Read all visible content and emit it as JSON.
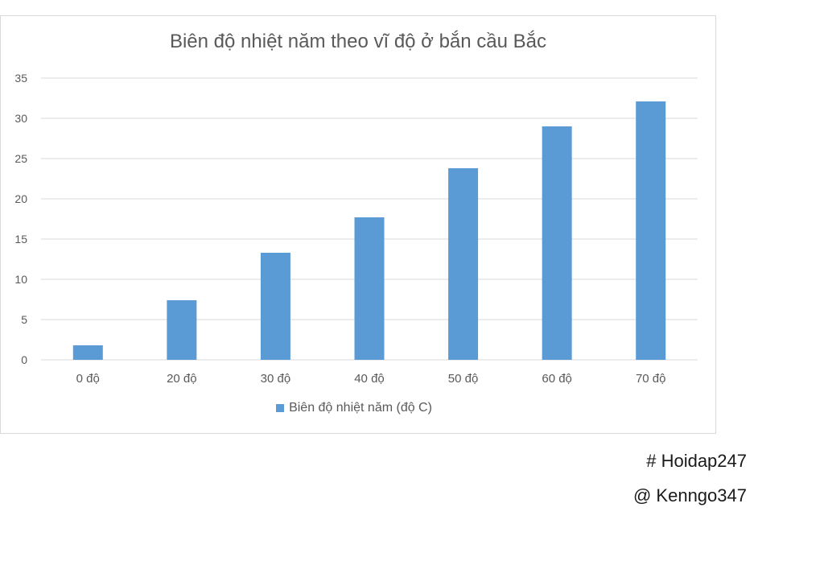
{
  "chart_data": {
    "type": "bar",
    "title": "Biên độ nhiệt năm theo vĩ độ ở bắn cầu Bắc",
    "categories": [
      "0 độ",
      "20 độ",
      "30 độ",
      "40 độ",
      "50 độ",
      "60 độ",
      "70 độ"
    ],
    "series": [
      {
        "name": "Biên độ nhiệt năm (độ C)",
        "values": [
          1.8,
          7.4,
          13.3,
          17.7,
          23.8,
          29.0,
          32.1
        ],
        "color": "#5b9bd5"
      }
    ],
    "ylim": [
      0,
      35
    ],
    "yticks": [
      "0",
      "5",
      "10",
      "15",
      "20",
      "25",
      "30",
      "35"
    ],
    "grid": true,
    "legend_position": "bottom"
  },
  "footer": {
    "hashtag": "# Hoidap247",
    "handle": "@ Kenngo347"
  }
}
